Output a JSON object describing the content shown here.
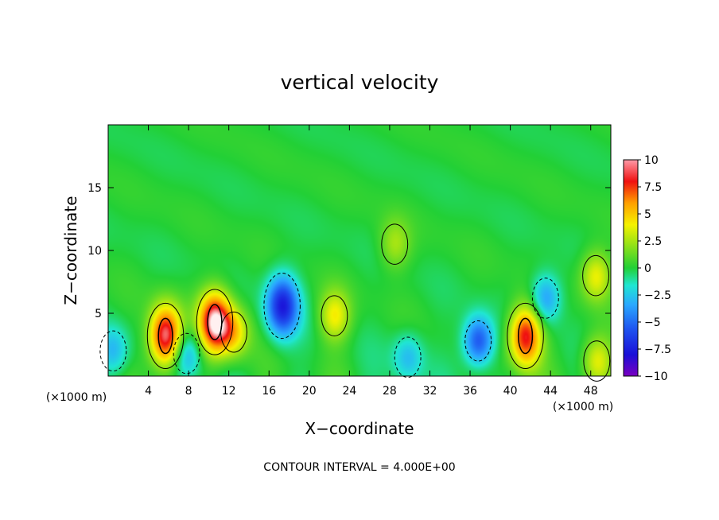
{
  "chart_data": {
    "type": "heatmap",
    "title": "vertical velocity",
    "xlabel": "X−coordinate",
    "ylabel": "Z−coordinate",
    "x_unit_left": "(×1000 m)",
    "x_unit_right": "(×1000 m)",
    "xlim": [
      0,
      50
    ],
    "ylim": [
      0,
      20
    ],
    "x_ticks": [
      "4",
      "8",
      "12",
      "16",
      "20",
      "24",
      "28",
      "32",
      "36",
      "40",
      "44",
      "48"
    ],
    "x_tick_values": [
      4,
      8,
      12,
      16,
      20,
      24,
      28,
      32,
      36,
      40,
      44,
      48
    ],
    "y_ticks": [
      "5",
      "10",
      "15"
    ],
    "y_tick_values": [
      5,
      10,
      15
    ],
    "colorbar": {
      "min": -10,
      "max": 10,
      "labels": [
        "10",
        "7.5",
        "5",
        "2.5",
        "0",
        "−2.5",
        "−5",
        "−7.5",
        "−10"
      ],
      "label_values": [
        10,
        7.5,
        5,
        2.5,
        0,
        -2.5,
        -5,
        -7.5,
        -10
      ]
    },
    "contour_interval_text": "CONTOUR INTERVAL = 4.000E+00",
    "contour_interval": 4.0,
    "features": [
      {
        "x": 5.7,
        "z": 3.2,
        "value": 9.5
      },
      {
        "x": 10.6,
        "z": 4.3,
        "value": 10.0
      },
      {
        "x": 12.5,
        "z": 3.5,
        "value": 4.0
      },
      {
        "x": 17.3,
        "z": 5.6,
        "value": -7.5
      },
      {
        "x": 22.5,
        "z": 4.8,
        "value": 4.0
      },
      {
        "x": 28.5,
        "z": 10.5,
        "value": 2.5
      },
      {
        "x": 29.8,
        "z": 1.5,
        "value": -3.0
      },
      {
        "x": 36.8,
        "z": 2.8,
        "value": -6.0
      },
      {
        "x": 41.5,
        "z": 3.2,
        "value": 8.5
      },
      {
        "x": 48.5,
        "z": 8.0,
        "value": 4.0
      },
      {
        "x": 7.8,
        "z": 1.8,
        "value": -3.5
      },
      {
        "x": 43.5,
        "z": 6.2,
        "value": -4.0
      },
      {
        "x": 0.5,
        "z": 2.0,
        "value": -3.0
      },
      {
        "x": 48.6,
        "z": 1.2,
        "value": 4.0
      }
    ]
  }
}
